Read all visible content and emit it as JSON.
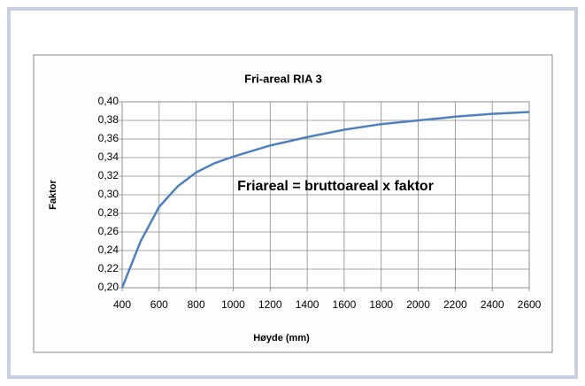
{
  "chart_data": {
    "type": "line",
    "title": "Fri-areal RIA 3",
    "annotation": "Friareal = bruttoareal x faktor",
    "xlabel": "Høyde (mm)",
    "ylabel": "Faktor",
    "x": [
      400,
      500,
      600,
      700,
      800,
      900,
      1000,
      1200,
      1400,
      1600,
      1800,
      2000,
      2200,
      2400,
      2600
    ],
    "series": [
      {
        "name": "Faktor",
        "color": "#4f81bd",
        "values": [
          0.2,
          0.25,
          0.287,
          0.309,
          0.324,
          0.334,
          0.341,
          0.353,
          0.362,
          0.37,
          0.376,
          0.38,
          0.384,
          0.387,
          0.389
        ]
      }
    ],
    "xlim": [
      400,
      2600
    ],
    "xticks": [
      400,
      600,
      800,
      1000,
      1200,
      1400,
      1600,
      1800,
      2000,
      2200,
      2400,
      2600
    ],
    "ylim": [
      0.2,
      0.4
    ],
    "yticks": [
      {
        "value": 0.2,
        "label": "0,20"
      },
      {
        "value": 0.22,
        "label": "0,22"
      },
      {
        "value": 0.24,
        "label": "0,24"
      },
      {
        "value": 0.26,
        "label": "0,26"
      },
      {
        "value": 0.28,
        "label": "0,28"
      },
      {
        "value": 0.3,
        "label": "0,30"
      },
      {
        "value": 0.32,
        "label": "0,32"
      },
      {
        "value": 0.34,
        "label": "0,34"
      },
      {
        "value": 0.36,
        "label": "0,36"
      },
      {
        "value": 0.38,
        "label": "0,38"
      },
      {
        "value": 0.4,
        "label": "0,40"
      }
    ],
    "grid": true
  }
}
